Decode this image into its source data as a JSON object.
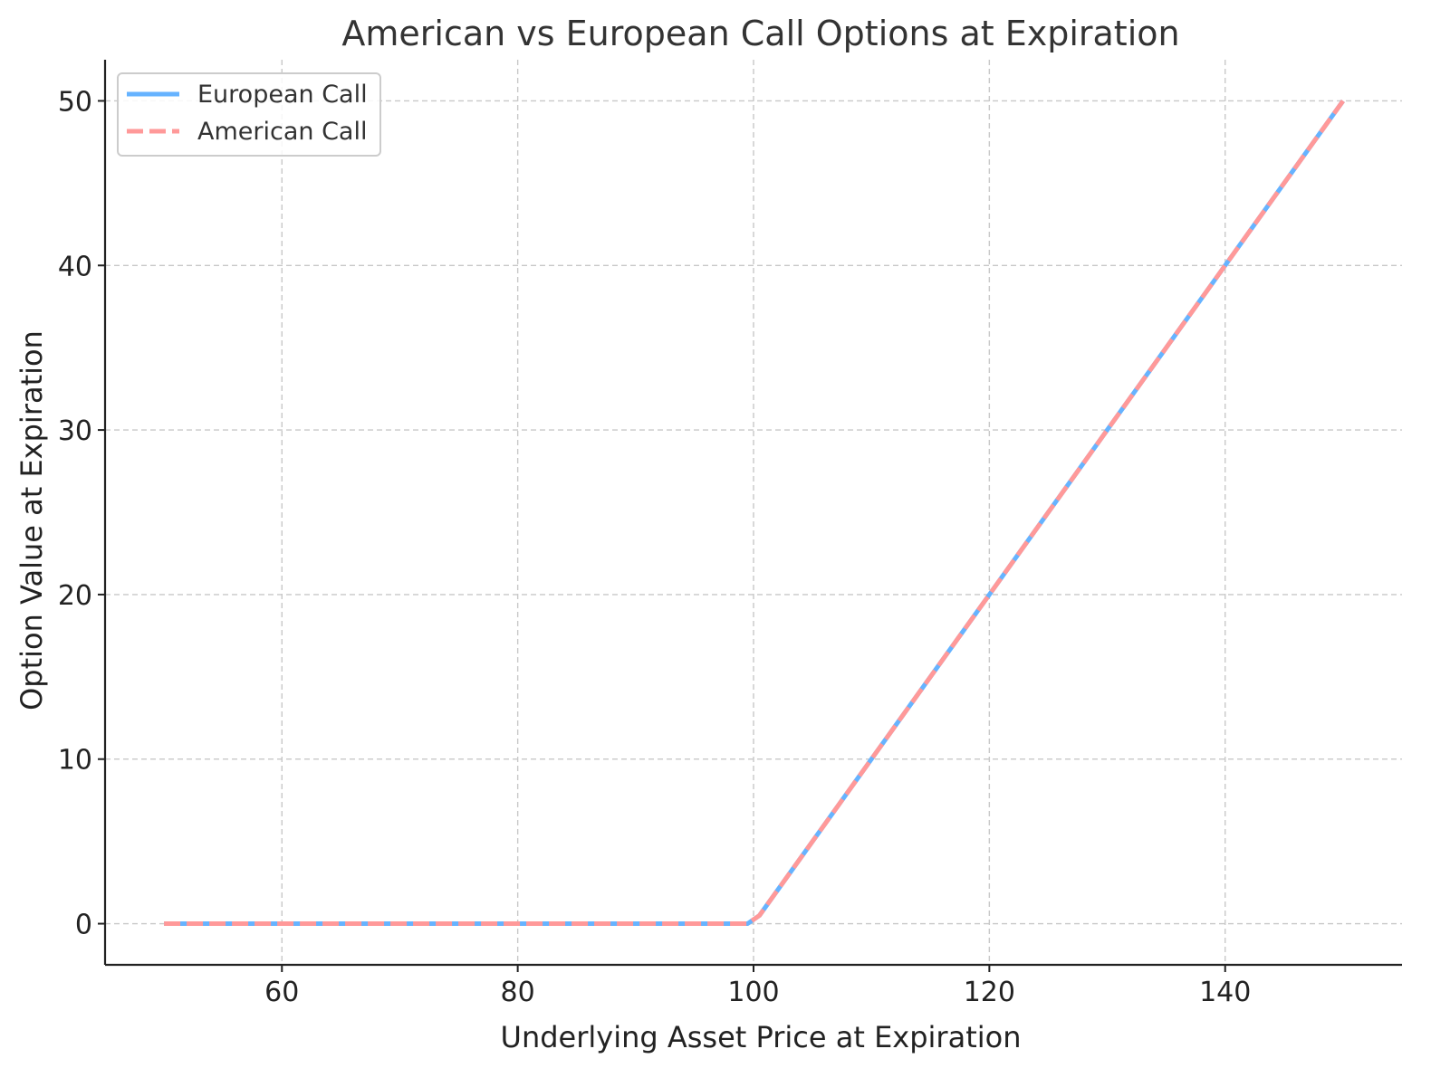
{
  "chart_data": {
    "type": "line",
    "title": "American vs European Call Options at Expiration",
    "xlabel": "Underlying Asset Price at Expiration",
    "ylabel": "Option Value at Expiration",
    "xlim": [
      45,
      155
    ],
    "ylim": [
      -2.5,
      52.5
    ],
    "xticks": [
      60,
      80,
      100,
      120,
      140
    ],
    "yticks": [
      0,
      10,
      20,
      30,
      40,
      50
    ],
    "grid": true,
    "legend_position": "top-left",
    "series": [
      {
        "name": "European Call",
        "color": "#66b3ff",
        "style": "solid",
        "x": [
          50,
          99.5,
          100.5,
          110,
          120,
          130,
          140,
          150
        ],
        "y": [
          0,
          0,
          0.5,
          10,
          20,
          30,
          40,
          50
        ]
      },
      {
        "name": "American Call",
        "color": "#ff9999",
        "style": "dashed",
        "x": [
          50,
          99.5,
          100.5,
          110,
          120,
          130,
          140,
          150
        ],
        "y": [
          0,
          0,
          0.5,
          10,
          20,
          30,
          40,
          50
        ]
      }
    ]
  }
}
